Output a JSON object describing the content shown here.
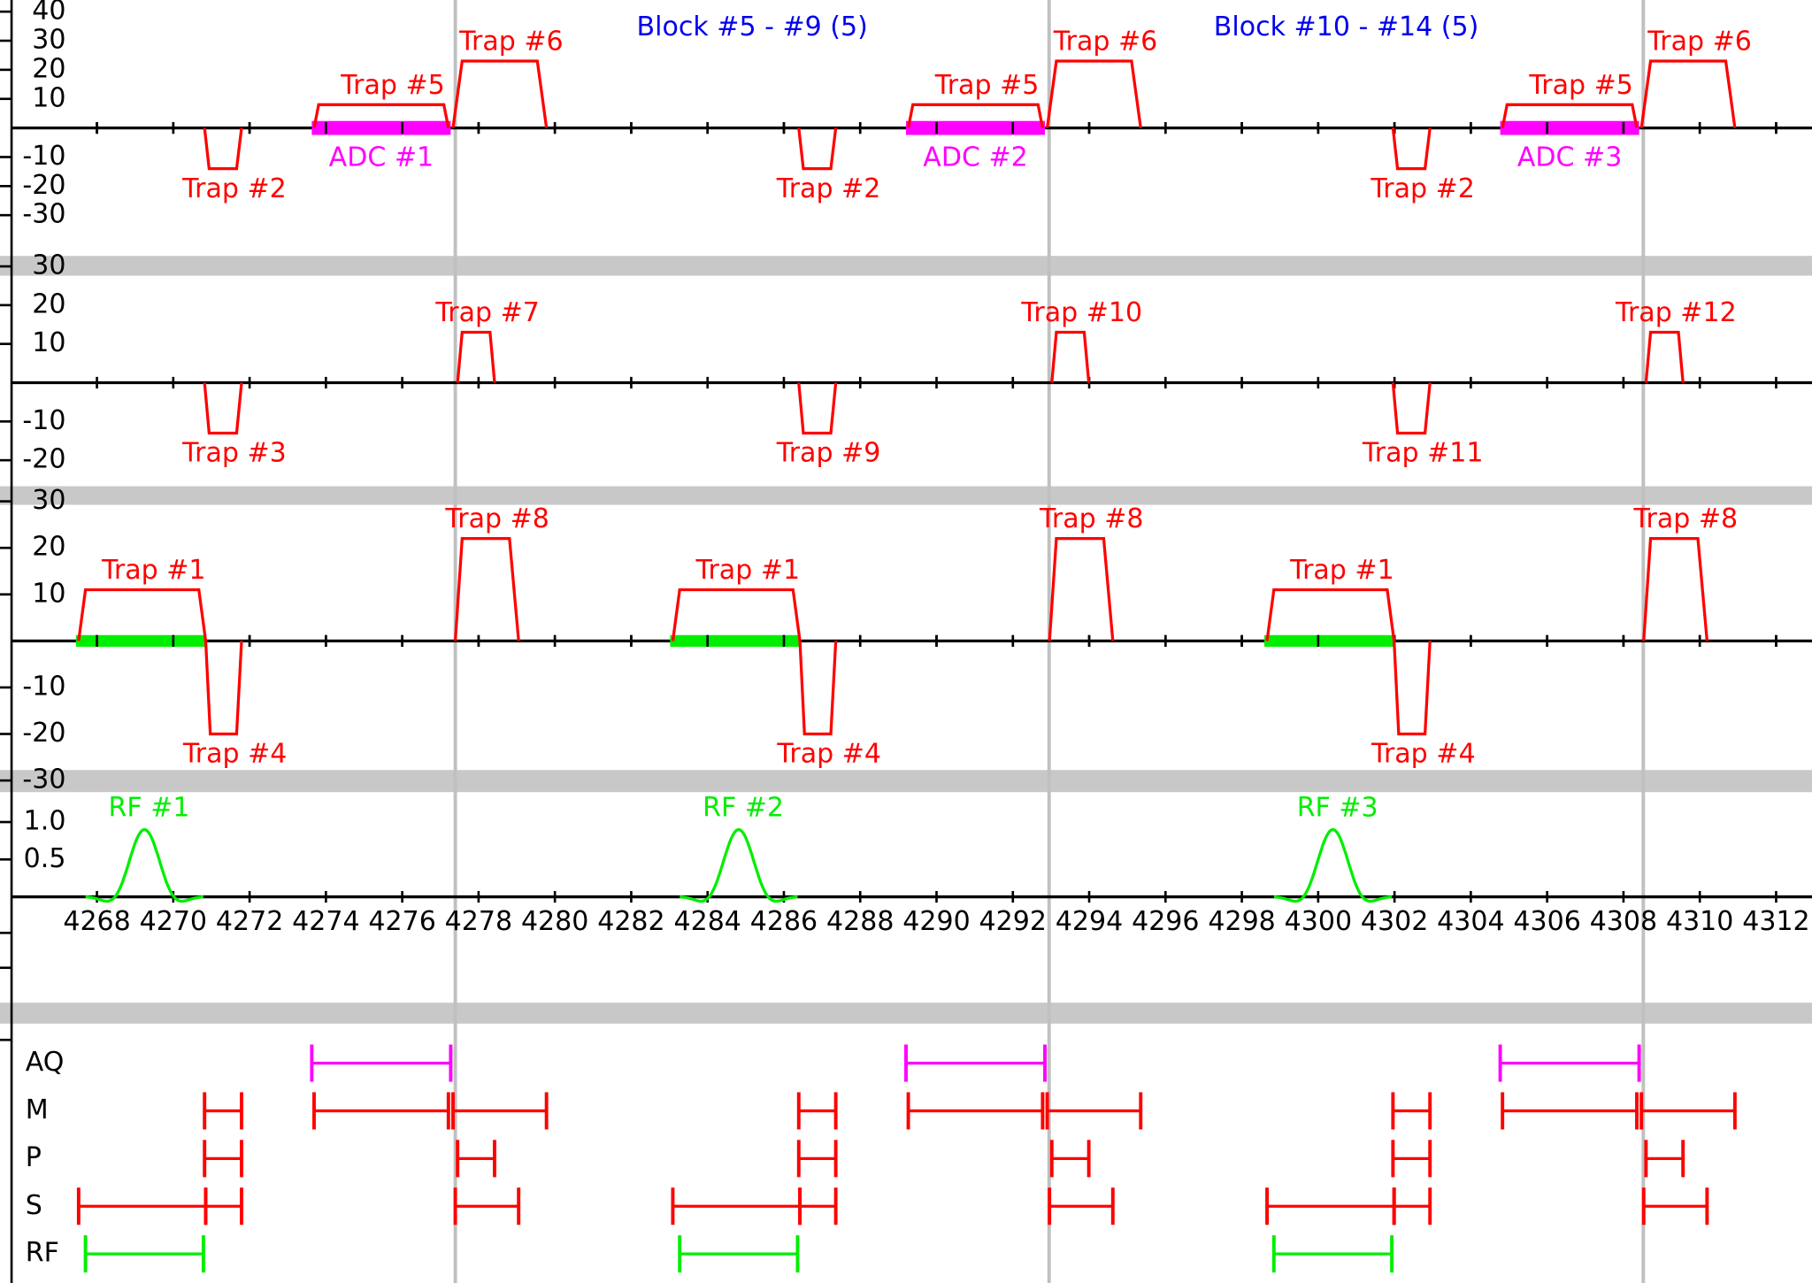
{
  "chart_data": {
    "type": "sequence",
    "xlim": [
      4265.46,
      4312.94
    ],
    "xticks": [
      4268,
      4270,
      4272,
      4274,
      4276,
      4278,
      4280,
      4282,
      4284,
      4286,
      4288,
      4290,
      4292,
      4294,
      4296,
      4298,
      4300,
      4302,
      4304,
      4306,
      4308,
      4310,
      4312
    ],
    "blocks": [
      {
        "label": "Block #5 - #9 (5)",
        "start": 4277.39,
        "end": 4292.95
      },
      {
        "label": "Block #10 - #14 (5)",
        "start": 4292.95,
        "end": 4308.52
      }
    ],
    "panels": [
      {
        "ylim": [
          -44,
          44
        ],
        "yticks": [
          -30,
          -20,
          -10,
          10,
          20,
          30,
          40
        ],
        "traps": [
          {
            "label": "Trap #2",
            "t": [
              4270.82,
              4270.94,
              4271.66,
              4271.79
            ],
            "amp": -14
          },
          {
            "label": "Trap #5",
            "t": [
              4273.69,
              4273.81,
              4277.09,
              4277.21
            ],
            "amp": 8
          },
          {
            "label": "Trap #6",
            "t": [
              4277.33,
              4277.57,
              4279.54,
              4279.78
            ],
            "amp": 23
          },
          {
            "label": "Trap #2",
            "t": [
              4286.39,
              4286.51,
              4287.23,
              4287.36
            ],
            "amp": -14
          },
          {
            "label": "Trap #5",
            "t": [
              4289.26,
              4289.38,
              4292.66,
              4292.78
            ],
            "amp": 8
          },
          {
            "label": "Trap #6",
            "t": [
              4292.9,
              4293.14,
              4295.11,
              4295.35
            ],
            "amp": 23
          },
          {
            "label": "Trap #2",
            "t": [
              4301.96,
              4302.08,
              4302.8,
              4302.93
            ],
            "amp": -14
          },
          {
            "label": "Trap #5",
            "t": [
              4304.83,
              4304.95,
              4308.23,
              4308.35
            ],
            "amp": 8
          },
          {
            "label": "Trap #6",
            "t": [
              4308.47,
              4308.71,
              4310.68,
              4310.92
            ],
            "amp": 23
          }
        ],
        "adc": [
          {
            "label": "ADC #1",
            "t": [
              4273.63,
              4277.27
            ]
          },
          {
            "label": "ADC #2",
            "t": [
              4289.2,
              4292.84
            ]
          },
          {
            "label": "ADC #3",
            "t": [
              4304.77,
              4308.41
            ]
          }
        ]
      },
      {
        "ylim": [
          -30,
          30
        ],
        "yticks": [
          -20,
          -10,
          10,
          20,
          30
        ],
        "traps": [
          {
            "label": "Trap #3",
            "t": [
              4270.82,
              4270.94,
              4271.66,
              4271.79
            ],
            "amp": -13
          },
          {
            "label": "Trap #7",
            "t": [
              4277.45,
              4277.57,
              4278.3,
              4278.42
            ],
            "amp": 13
          },
          {
            "label": "Trap #9",
            "t": [
              4286.39,
              4286.51,
              4287.23,
              4287.36
            ],
            "amp": -13
          },
          {
            "label": "Trap #10",
            "t": [
              4293.02,
              4293.14,
              4293.87,
              4293.99
            ],
            "amp": 13
          },
          {
            "label": "Trap #11",
            "t": [
              4301.96,
              4302.08,
              4302.8,
              4302.93
            ],
            "amp": -13
          },
          {
            "label": "Trap #12",
            "t": [
              4308.59,
              4308.71,
              4309.44,
              4309.56
            ],
            "amp": 13
          }
        ]
      },
      {
        "ylim": [
          -30,
          30
        ],
        "yticks": [
          -30,
          -20,
          -10,
          10,
          20,
          30
        ],
        "traps": [
          {
            "label": "Trap #1",
            "t": [
              4267.52,
              4267.7,
              4270.67,
              4270.85
            ],
            "amp": 11
          },
          {
            "label": "Trap #4",
            "t": [
              4270.85,
              4270.97,
              4271.66,
              4271.79
            ],
            "amp": -20
          },
          {
            "label": "Trap #8",
            "t": [
              4277.39,
              4277.57,
              4278.81,
              4279.05
            ],
            "amp": 22
          },
          {
            "label": "Trap #1",
            "t": [
              4283.09,
              4283.27,
              4286.24,
              4286.42
            ],
            "amp": 11
          },
          {
            "label": "Trap #4",
            "t": [
              4286.42,
              4286.54,
              4287.23,
              4287.36
            ],
            "amp": -20
          },
          {
            "label": "Trap #8",
            "t": [
              4292.96,
              4293.14,
              4294.38,
              4294.62
            ],
            "amp": 22
          },
          {
            "label": "Trap #1",
            "t": [
              4298.66,
              4298.84,
              4301.81,
              4301.99
            ],
            "amp": 11
          },
          {
            "label": "Trap #4",
            "t": [
              4301.99,
              4302.11,
              4302.8,
              4302.93
            ],
            "amp": -20
          },
          {
            "label": "Trap #8",
            "t": [
              4308.53,
              4308.71,
              4309.95,
              4310.19
            ],
            "amp": 22
          }
        ],
        "windows": [
          [
            4267.45,
            4270.85
          ],
          [
            4283.02,
            4286.42
          ],
          [
            4298.59,
            4301.99
          ]
        ]
      },
      {
        "ylim": [
          0,
          1.4
        ],
        "yticks": [
          0.5,
          {
            "value": 1,
            "label": "1.0"
          }
        ],
        "rf": [
          {
            "label": "RF #1",
            "t": [
              4267.7,
              4270.79
            ],
            "amp": 0.9
          },
          {
            "label": "RF #2",
            "t": [
              4283.27,
              4286.36
            ],
            "amp": 0.9
          },
          {
            "label": "RF #3",
            "t": [
              4298.84,
              4301.93
            ],
            "amp": 0.9
          }
        ]
      }
    ],
    "timeline_rows": [
      "AQ",
      "M",
      "P",
      "S",
      "RF"
    ]
  }
}
